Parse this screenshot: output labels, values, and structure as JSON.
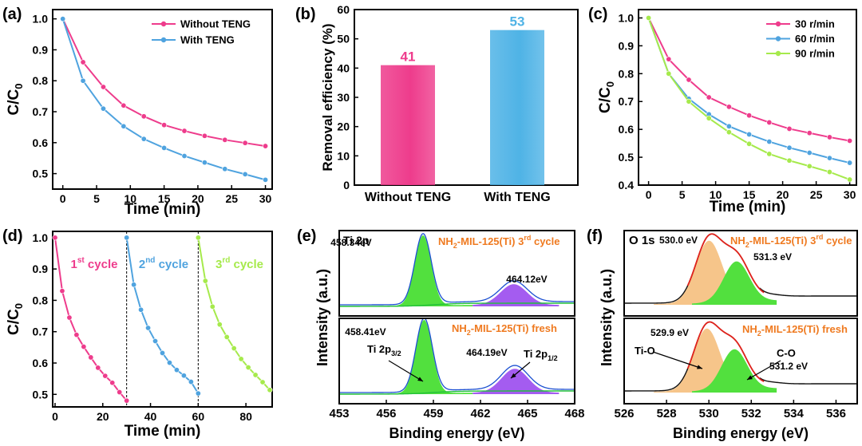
{
  "colors": {
    "pink": "#ee3c8c",
    "blue": "#4fa3df",
    "green": "#a6ea4c",
    "xps_green": "#52e03e",
    "xps_purple": "#a45cf0",
    "xps_orange": "#f6c58a",
    "envelope_black": "#111111",
    "envelope_red": "#e0231c",
    "label_orange": "#ef7a20"
  },
  "chart_data": [
    {
      "id": "a",
      "panel_label": "(a)",
      "type": "line",
      "xlabel": "Time (min)",
      "ylabel_main": "C/C",
      "ylabel_sub": "0",
      "xlim": [
        -1.5,
        31
      ],
      "ylim": [
        0.45,
        1.03
      ],
      "xticks": [
        0,
        5,
        10,
        15,
        20,
        25,
        30
      ],
      "yticks": [
        0.5,
        0.6,
        0.7,
        0.8,
        0.9,
        1.0
      ],
      "ytick_labels": [
        "0.5",
        "0.6",
        "0.7",
        "0.8",
        "0.9",
        "1.0"
      ],
      "legend_position": "top-right",
      "series": [
        {
          "name": "Without TENG",
          "color": "#ee3c8c",
          "x": [
            0,
            3,
            6,
            9,
            12,
            15,
            18,
            21,
            24,
            27,
            30
          ],
          "y": [
            1.0,
            0.86,
            0.78,
            0.72,
            0.685,
            0.657,
            0.638,
            0.622,
            0.609,
            0.599,
            0.589
          ]
        },
        {
          "name": "With TENG",
          "color": "#4fa3df",
          "x": [
            0,
            3,
            6,
            9,
            12,
            15,
            18,
            21,
            24,
            27,
            30
          ],
          "y": [
            1.0,
            0.8,
            0.71,
            0.653,
            0.612,
            0.583,
            0.557,
            0.536,
            0.515,
            0.498,
            0.48
          ]
        }
      ]
    },
    {
      "id": "b",
      "panel_label": "(b)",
      "type": "bar",
      "ylabel": "Removal efficiency (%)",
      "ylim": [
        0,
        60
      ],
      "yticks": [
        0,
        10,
        20,
        30,
        40,
        50,
        60
      ],
      "categories": [
        "Without TENG",
        "With TENG"
      ],
      "values": [
        41,
        53
      ],
      "value_labels": [
        "41",
        "53"
      ],
      "bar_colors": [
        "#ee3c8c",
        "#4fb3e6"
      ]
    },
    {
      "id": "c",
      "panel_label": "(c)",
      "type": "line",
      "xlabel": "Time (min)",
      "ylabel_main": "C/C",
      "ylabel_sub": "0",
      "xlim": [
        -1.5,
        31
      ],
      "ylim": [
        0.4,
        1.03
      ],
      "xticks": [
        0,
        5,
        10,
        15,
        20,
        25,
        30
      ],
      "yticks": [
        0.4,
        0.5,
        0.6,
        0.7,
        0.8,
        0.9,
        1.0
      ],
      "ytick_labels": [
        "0.4",
        "0.5",
        "0.6",
        "0.7",
        "0.8",
        "0.9",
        "1.0"
      ],
      "legend_position": "top-right",
      "series": [
        {
          "name": "30 r/min",
          "color": "#ee3c8c",
          "x": [
            0,
            3,
            6,
            9,
            12,
            15,
            18,
            21,
            24,
            27,
            30
          ],
          "y": [
            1.0,
            0.852,
            0.778,
            0.715,
            0.681,
            0.65,
            0.625,
            0.602,
            0.587,
            0.572,
            0.559
          ]
        },
        {
          "name": "60 r/min",
          "color": "#4fa3df",
          "x": [
            0,
            3,
            6,
            9,
            12,
            15,
            18,
            21,
            24,
            27,
            30
          ],
          "y": [
            1.0,
            0.8,
            0.71,
            0.654,
            0.611,
            0.582,
            0.556,
            0.534,
            0.516,
            0.497,
            0.48
          ]
        },
        {
          "name": "90 r/min",
          "color": "#a6ea4c",
          "x": [
            0,
            3,
            6,
            9,
            12,
            15,
            18,
            21,
            24,
            27,
            30
          ],
          "y": [
            1.0,
            0.8,
            0.7,
            0.64,
            0.59,
            0.548,
            0.512,
            0.488,
            0.468,
            0.447,
            0.42
          ]
        }
      ]
    },
    {
      "id": "d",
      "panel_label": "(d)",
      "type": "line",
      "xlabel": "Time (min)",
      "ylabel_main": "C/C",
      "ylabel_sub": "0",
      "xlim": [
        -1,
        91
      ],
      "ylim": [
        0.46,
        1.02
      ],
      "xticks": [
        0,
        20,
        40,
        60,
        80
      ],
      "yticks": [
        0.5,
        0.6,
        0.7,
        0.8,
        0.9,
        1.0
      ],
      "ytick_labels": [
        "0.5",
        "0.6",
        "0.7",
        "0.8",
        "0.9",
        "1.0"
      ],
      "dividers_x": [
        30,
        60
      ],
      "series": [
        {
          "name": "1",
          "sup": "st",
          "suffix": " cycle",
          "color": "#ee3c8c",
          "x": [
            0,
            3,
            6,
            9,
            12,
            15,
            18,
            21,
            24,
            27,
            30
          ],
          "y": [
            1.0,
            0.83,
            0.745,
            0.69,
            0.652,
            0.618,
            0.585,
            0.559,
            0.537,
            0.507,
            0.48
          ]
        },
        {
          "name": "2",
          "sup": "nd",
          "suffix": " cycle",
          "color": "#4fa3df",
          "x": [
            30,
            33,
            36,
            39,
            42,
            45,
            48,
            51,
            54,
            57,
            60
          ],
          "y": [
            1.0,
            0.85,
            0.77,
            0.712,
            0.67,
            0.632,
            0.601,
            0.578,
            0.56,
            0.54,
            0.503
          ]
        },
        {
          "name": "3",
          "sup": "rd",
          "suffix": " cycle",
          "color": "#a6ea4c",
          "x": [
            60,
            63,
            66,
            69,
            72,
            75,
            78,
            81,
            84,
            87,
            90
          ],
          "y": [
            1.0,
            0.862,
            0.78,
            0.723,
            0.683,
            0.647,
            0.613,
            0.586,
            0.562,
            0.539,
            0.514
          ]
        }
      ]
    },
    {
      "id": "e",
      "panel_label": "(e)",
      "type": "area",
      "xlabel": "Binding energy (eV)",
      "ylabel": "Intensity (a.u.)",
      "xlim": [
        453,
        468
      ],
      "xticks": [
        453,
        456,
        459,
        462,
        465,
        468
      ],
      "core_level": "Ti 2p",
      "subplots": [
        {
          "name": "NH2-MIL-125(Ti) 3rd cycle",
          "label_main": "NH",
          "label_sub": "2",
          "label_mid": "-MIL-125(Ti) ",
          "label_num": "3",
          "label_sup": "rd",
          "label_end": " cycle",
          "peaks": [
            {
              "center": 458.34,
              "label": "458.34eV",
              "color": "#52e03e"
            },
            {
              "center": 464.12,
              "label": "464.12eV",
              "color": "#a45cf0"
            }
          ]
        },
        {
          "name": "NH2-MIL-125(Ti) fresh",
          "label_main": "NH",
          "label_sub": "2",
          "label_mid": "-MIL-125(Ti) fresh",
          "peaks": [
            {
              "center": 458.41,
              "label": "458.41eV",
              "color": "#52e03e",
              "assignment_main": "Ti 2p",
              "assignment_sub": "3/2"
            },
            {
              "center": 464.19,
              "label": "464.19eV",
              "color": "#a45cf0",
              "assignment_main": "Ti 2p",
              "assignment_sub": "1/2"
            }
          ]
        }
      ]
    },
    {
      "id": "f",
      "panel_label": "(f)",
      "type": "area",
      "xlabel": "Binding energy (eV)",
      "ylabel": "Intensity (a.u.)",
      "xlim": [
        526,
        537
      ],
      "xticks": [
        526,
        528,
        530,
        532,
        534,
        536
      ],
      "core_level": "O 1s",
      "subplots": [
        {
          "name": "NH2-MIL-125(Ti) 3rd cycle",
          "label_main": "NH",
          "label_sub": "2",
          "label_mid": "-MIL-125(Ti) ",
          "label_num": "3",
          "label_sup": "rd",
          "label_end": " cycle",
          "peaks": [
            {
              "center": 530.0,
              "label": "530.0 eV",
              "color": "#f6c58a"
            },
            {
              "center": 531.3,
              "label": "531.3 eV",
              "color": "#52e03e"
            }
          ]
        },
        {
          "name": "NH2-MIL-125(Ti) fresh",
          "label_main": "NH",
          "label_sub": "2",
          "label_mid": "-MIL-125(Ti) fresh",
          "peaks": [
            {
              "center": 529.9,
              "label": "529.9 eV",
              "color": "#f6c58a",
              "assignment": "Ti-O"
            },
            {
              "center": 531.2,
              "label": "531.2 eV",
              "color": "#52e03e",
              "assignment": "C-O"
            }
          ]
        }
      ]
    }
  ]
}
